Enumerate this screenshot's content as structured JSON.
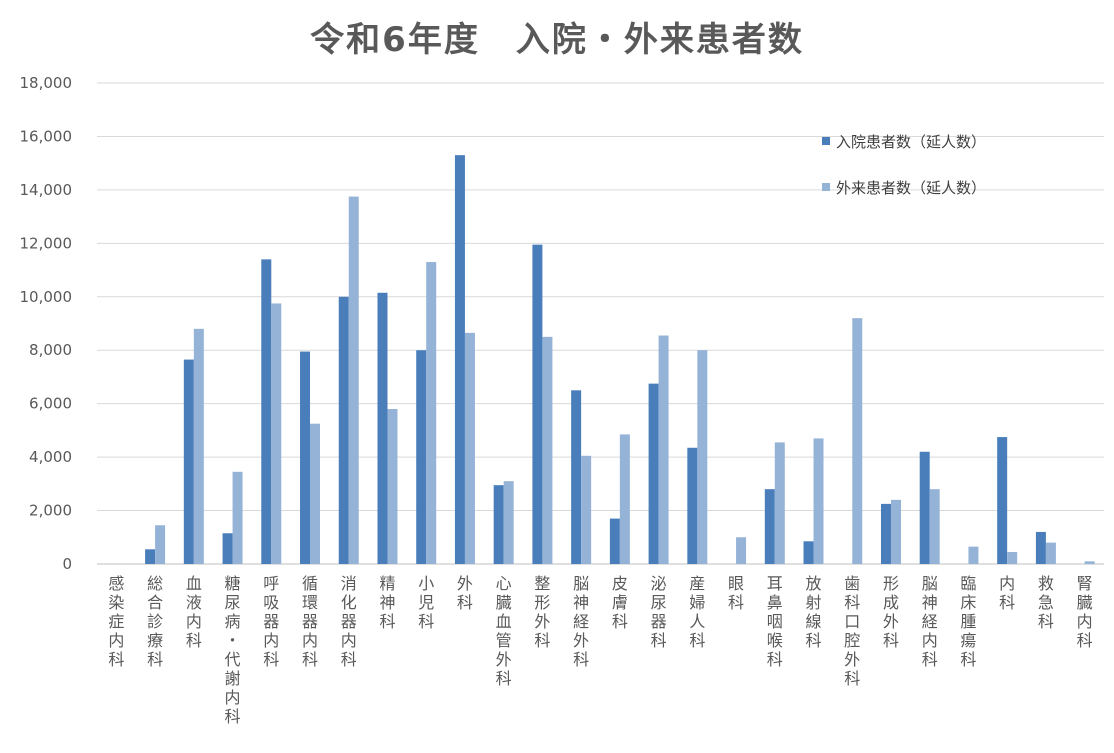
{
  "chart_data": {
    "type": "bar",
    "title": "令和6年度　入院・外来患者数",
    "xlabel": "",
    "ylabel": "",
    "ylim": [
      0,
      18000
    ],
    "yticks": [
      "0",
      "2,000",
      "4,000",
      "6,000",
      "8,000",
      "10,000",
      "12,000",
      "14,000",
      "16,000",
      "18,000"
    ],
    "grid": true,
    "legend_position": "top-right",
    "categories": [
      "感染症内科",
      "総合診療科",
      "血液内科",
      "糖尿病・代謝内科",
      "呼吸器内科",
      "循環器内科",
      "消化器内科",
      "精神科",
      "小児科",
      "外科",
      "心臓血管外科",
      "整形外科",
      "脳神経外科",
      "皮膚科",
      "泌尿器科",
      "産婦人科",
      "眼科",
      "耳鼻咽喉科",
      "放射線科",
      "歯科口腔外科",
      "形成外科",
      "脳神経内科",
      "臨床腫瘍科",
      "内科",
      "救急科",
      "腎臓内科"
    ],
    "series": [
      {
        "name": "入院患者数（延人数）",
        "color": "#4a7ebb",
        "values": [
          0,
          550,
          7650,
          1150,
          11400,
          7950,
          10000,
          10150,
          8000,
          15300,
          2950,
          11950,
          6500,
          1700,
          6750,
          4350,
          0,
          2800,
          850,
          0,
          2250,
          4200,
          0,
          4750,
          1200,
          0
        ]
      },
      {
        "name": "外来患者数（延人数）",
        "color": "#95b3d7",
        "values": [
          0,
          1450,
          8800,
          3450,
          9750,
          5250,
          13750,
          5800,
          11300,
          8650,
          3100,
          8500,
          4050,
          4850,
          8550,
          8000,
          1000,
          4550,
          4700,
          9200,
          2400,
          2800,
          650,
          450,
          800,
          100
        ]
      }
    ]
  }
}
